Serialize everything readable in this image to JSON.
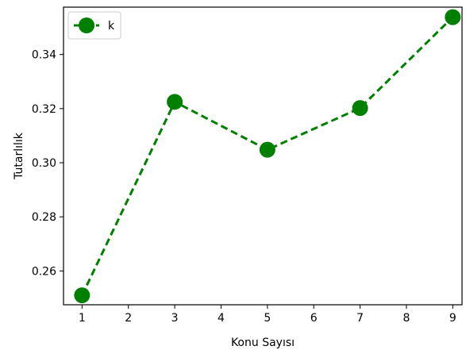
{
  "chart_data": {
    "type": "line",
    "title": "",
    "xlabel": "Konu Sayısı",
    "ylabel": "Tutarlılık",
    "xlim": [
      0.6,
      9.2
    ],
    "ylim": [
      0.2475,
      0.3575
    ],
    "x_ticks": [
      1,
      2,
      3,
      4,
      5,
      6,
      7,
      8,
      9
    ],
    "y_ticks": [
      0.26,
      0.28,
      0.3,
      0.32,
      0.34
    ],
    "y_tick_labels": [
      "0.26",
      "0.28",
      "0.30",
      "0.32",
      "0.34"
    ],
    "grid": false,
    "legend_position": "top-left",
    "series": [
      {
        "name": "k",
        "color": "#008000",
        "line_style": "dashed",
        "marker": "circle",
        "x": [
          1,
          3,
          5,
          7,
          9
        ],
        "y": [
          0.251,
          0.3225,
          0.3048,
          0.3202,
          0.3538
        ]
      }
    ]
  }
}
